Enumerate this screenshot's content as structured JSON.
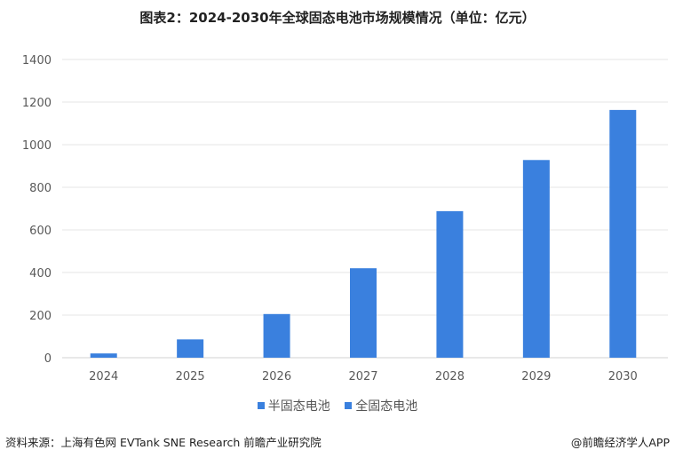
{
  "title": "图表2：2024-2030年全球固态电池市场规模情况（单位：亿元）",
  "chart_data": {
    "type": "bar",
    "categories": [
      "2024",
      "2025",
      "2026",
      "2027",
      "2028",
      "2029",
      "2030"
    ],
    "series": [
      {
        "name": "半固态电池",
        "values": [
          20,
          86,
          205,
          420,
          688,
          928,
          1163
        ],
        "color": "#3a80de"
      },
      {
        "name": "全固态电池",
        "values": [
          0,
          0,
          0,
          0,
          0,
          0,
          0
        ],
        "color": "#3a80de"
      }
    ],
    "ylim": [
      0,
      1400
    ],
    "yticks": [
      0,
      200,
      400,
      600,
      800,
      1000,
      1200,
      1400
    ],
    "grid": true,
    "legend": "bottom"
  },
  "source": "资料来源：上海有色网 EVTank SNE Research 前瞻产业研究院",
  "brand": "@前瞻经济学人APP"
}
